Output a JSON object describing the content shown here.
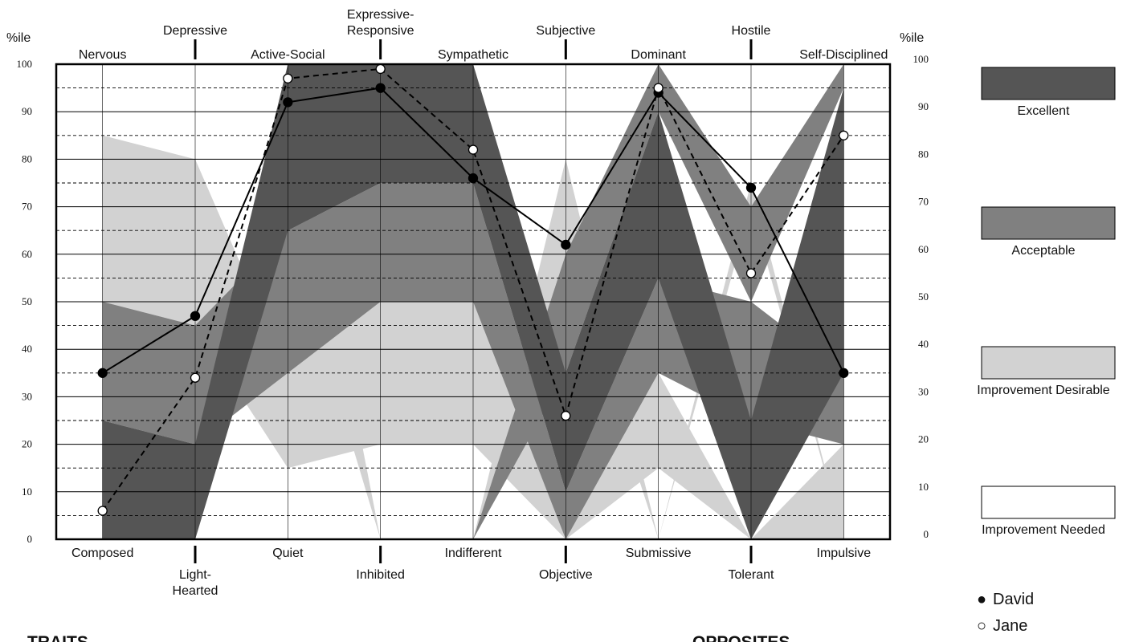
{
  "chart_data": {
    "type": "line",
    "y_unit_label": "%ile",
    "ylim": [
      0,
      100
    ],
    "y_ticks": [
      0,
      10,
      20,
      30,
      40,
      50,
      60,
      70,
      80,
      90,
      100
    ],
    "grid": true,
    "legend_placement": "right",
    "traits": [
      {
        "trait": [
          "Nervous"
        ],
        "opposite": [
          "Composed"
        ]
      },
      {
        "trait": [
          "Depressive"
        ],
        "opposite": [
          "Light-",
          "Hearted"
        ]
      },
      {
        "trait": [
          "Active-Social"
        ],
        "opposite": [
          "Quiet"
        ]
      },
      {
        "trait": [
          "Expressive-",
          "Responsive"
        ],
        "opposite": [
          "Inhibited"
        ]
      },
      {
        "trait": [
          "Sympathetic"
        ],
        "opposite": [
          "Indifferent"
        ]
      },
      {
        "trait": [
          "Subjective"
        ],
        "opposite": [
          "Objective"
        ]
      },
      {
        "trait": [
          "Dominant"
        ],
        "opposite": [
          "Submissive"
        ]
      },
      {
        "trait": [
          "Hostile"
        ],
        "opposite": [
          "Tolerant"
        ]
      },
      {
        "trait": [
          "Self-Disciplined"
        ],
        "opposite": [
          "Impulsive"
        ]
      }
    ],
    "series": [
      {
        "name": "David",
        "marker": "filled",
        "style": "solid",
        "values": [
          35,
          47,
          92,
          95,
          76,
          62,
          94,
          74,
          35
        ]
      },
      {
        "name": "Jane",
        "marker": "open",
        "style": "dashed",
        "values": [
          6,
          34,
          97,
          99,
          82,
          26,
          95,
          56,
          85
        ]
      }
    ],
    "bands": {
      "excellent": [
        [
          0,
          25
        ],
        [
          0,
          20
        ],
        [
          65,
          100
        ],
        [
          75,
          100
        ],
        [
          75,
          100
        ],
        [
          10,
          35
        ],
        [
          55,
          90
        ],
        [
          0,
          25
        ],
        [
          35,
          95
        ]
      ],
      "acceptable": [
        [
          25,
          50
        ],
        [
          20,
          45
        ],
        [
          35,
          65
        ],
        [
          50,
          75
        ],
        [
          50,
          75
        ],
        [
          0,
          10
        ],
        [
          35,
          55
        ],
        [
          25,
          50
        ],
        [
          20,
          35
        ]
      ],
      "desirable": [
        [
          50,
          85
        ],
        [
          45,
          80
        ],
        [
          15,
          35
        ],
        [
          20,
          50
        ],
        [
          20,
          50
        ],
        [
          0,
          0
        ],
        [
          15,
          35
        ],
        [
          0,
          0
        ],
        [
          0,
          20
        ]
      ]
    },
    "bands_upper": {
      "acceptable": [
        [
          0,
          0
        ],
        [
          0,
          0
        ],
        [
          0,
          0
        ],
        [
          0,
          0
        ],
        [
          0,
          0
        ],
        [
          35,
          60
        ],
        [
          90,
          100
        ],
        [
          50,
          70
        ],
        [
          95,
          100
        ]
      ],
      "desirable": [
        [
          0,
          0
        ],
        [
          0,
          0
        ],
        [
          65,
          100
        ],
        [
          0,
          0
        ],
        [
          0,
          0
        ],
        [
          60,
          80
        ],
        [
          0,
          0
        ],
        [
          70,
          75
        ],
        [
          0,
          0
        ]
      ]
    },
    "legend": [
      {
        "key": "excellent",
        "label": "Excellent",
        "color": "#555555"
      },
      {
        "key": "acceptable",
        "label": "Acceptable",
        "color": "#808080"
      },
      {
        "key": "desirable",
        "label": "Improvement Desirable",
        "color": "#d2d2d2"
      },
      {
        "key": "needed",
        "label": "Improvement Needed",
        "color": "#ffffff"
      }
    ],
    "people_legend": [
      {
        "symbol": "●",
        "name": "David"
      },
      {
        "symbol": "○",
        "name": "Jane"
      }
    ],
    "footer": {
      "left": "TRAITS",
      "right": "OPPOSITES"
    }
  }
}
